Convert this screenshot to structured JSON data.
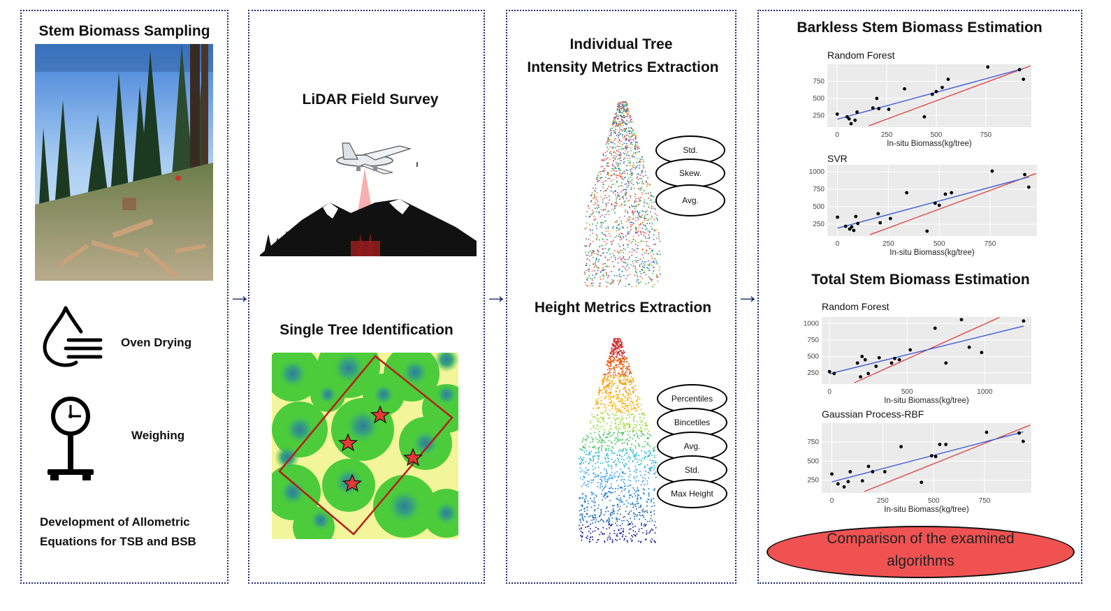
{
  "panel1": {
    "title": "Stem Biomass Sampling",
    "oven_label": "Oven Drying",
    "weigh_label": "Weighing",
    "allometric_line1": "Development of Allometric",
    "allometric_line2": "Equations for TSB and BSB"
  },
  "panel2": {
    "lidar_title": "LiDAR Field Survey",
    "single_tree_title": "Single Tree Identification"
  },
  "panel3": {
    "intensity_title_line1": "Individual Tree",
    "intensity_title_line2": "Intensity Metrics Extraction",
    "intensity_metrics": [
      "Std.",
      "Skew.",
      "Avg."
    ],
    "height_title": "Height Metrics Extraction",
    "height_metrics": [
      "Percentiles",
      "Bincetiles",
      "Avg.",
      "Std.",
      "Max Height"
    ]
  },
  "panel4": {
    "barkless_title": "Barkless Stem Biomass Estimation",
    "total_title": "Total Stem Biomass Estimation",
    "comparison_line1": "Comparison of the examined",
    "comparison_line2": "algorithms"
  },
  "colors": {
    "panel_border": "#1f2a6b",
    "fit_line": "#3b5bdb",
    "one_to_one_line": "#e03131",
    "oval_fill": "#f05252",
    "plot_bg": "#ebebeb"
  },
  "chart_data": [
    {
      "type": "scatter",
      "title": "Random Forest",
      "xlabel": "In-situ Biomass(kg/tree)",
      "xticks": [
        0,
        250,
        500,
        750
      ],
      "yticks": [
        250,
        500,
        750
      ],
      "xlim": [
        -50,
        980
      ],
      "ylim": [
        80,
        1000
      ],
      "x": [
        0,
        50,
        60,
        70,
        90,
        100,
        180,
        200,
        210,
        260,
        340,
        440,
        480,
        500,
        530,
        560,
        760,
        920,
        940
      ],
      "y": [
        270,
        230,
        200,
        130,
        180,
        300,
        360,
        500,
        350,
        340,
        640,
        230,
        560,
        600,
        660,
        780,
        960,
        920,
        780
      ]
    },
    {
      "type": "scatter",
      "title": "SVR",
      "xlabel": "In-situ Biomass(kg/tree)",
      "xticks": [
        0,
        250,
        500,
        750
      ],
      "yticks": [
        250,
        500,
        750,
        1000
      ],
      "xlim": [
        -50,
        980
      ],
      "ylim": [
        80,
        1100
      ],
      "x": [
        0,
        40,
        60,
        70,
        80,
        90,
        100,
        200,
        210,
        260,
        340,
        440,
        480,
        500,
        530,
        560,
        760,
        920,
        940
      ],
      "y": [
        350,
        220,
        180,
        210,
        160,
        360,
        260,
        400,
        270,
        330,
        700,
        150,
        550,
        520,
        680,
        700,
        1010,
        960,
        780
      ]
    },
    {
      "type": "scatter",
      "title": "Random Forest",
      "xlabel": "In-situ Biomass(kg/tree)",
      "xticks": [
        0,
        500,
        1000
      ],
      "yticks": [
        250,
        500,
        750,
        1000
      ],
      "xlim": [
        -50,
        1300
      ],
      "ylim": [
        80,
        1100
      ],
      "x": [
        0,
        30,
        180,
        200,
        210,
        230,
        250,
        300,
        320,
        400,
        420,
        450,
        520,
        680,
        750,
        850,
        900,
        980,
        1250
      ],
      "y": [
        270,
        240,
        400,
        190,
        500,
        450,
        240,
        350,
        480,
        400,
        470,
        450,
        600,
        930,
        400,
        1060,
        640,
        560,
        1040
      ]
    },
    {
      "type": "scatter",
      "title": "Gaussian Process-RBF",
      "xlabel": "In-situ Biomass(kg/tree)",
      "xticks": [
        0,
        250,
        500,
        750
      ],
      "yticks": [
        250,
        500,
        750
      ],
      "xlim": [
        -50,
        980
      ],
      "ylim": [
        80,
        1000
      ],
      "x": [
        0,
        30,
        60,
        80,
        90,
        150,
        180,
        200,
        260,
        340,
        440,
        490,
        510,
        530,
        560,
        760,
        920,
        940
      ],
      "y": [
        330,
        200,
        160,
        230,
        360,
        240,
        430,
        360,
        360,
        690,
        220,
        570,
        560,
        720,
        720,
        880,
        870,
        760
      ]
    }
  ]
}
